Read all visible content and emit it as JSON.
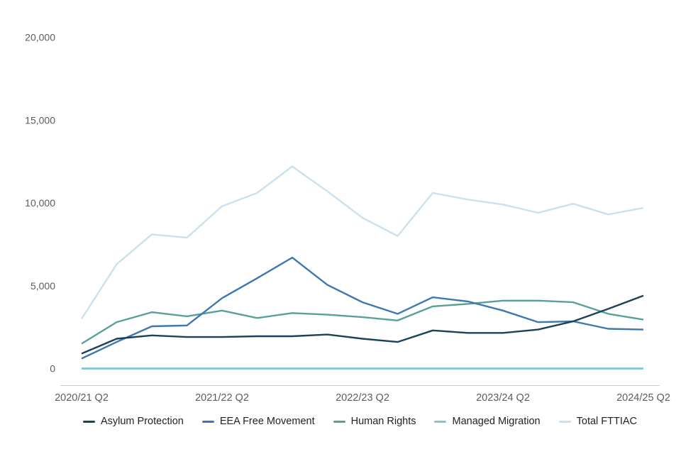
{
  "chart_data": {
    "type": "line",
    "x_tick_labels": [
      "2020/21 Q2",
      "2021/22 Q2",
      "2022/23 Q2",
      "2023/24 Q2",
      "2024/25 Q2"
    ],
    "x_tick_indices": [
      0,
      4,
      8,
      12,
      16
    ],
    "num_points": 17,
    "x_interval": "quarterly",
    "y_tick_labels": [
      "0",
      "5,000",
      "10,000",
      "15,000",
      "20,000"
    ],
    "y_tick_values": [
      0,
      5000,
      10000,
      15000,
      20000
    ],
    "ylim": [
      0,
      20000
    ],
    "grid": "off",
    "legend_position": "bottom",
    "axis_line_color": "#cccccc",
    "axis_text_color": "#5c5c5c",
    "legend_text_color": "#222222",
    "series": [
      {
        "name": "Asylum Protection",
        "color": "#1c4257",
        "values": [
          900,
          1800,
          2000,
          1900,
          1900,
          1950,
          1950,
          2050,
          1800,
          1600,
          2300,
          2150,
          2150,
          2350,
          2850,
          3600,
          4400
        ]
      },
      {
        "name": "EEA Free Movement",
        "color": "#3e78b1",
        "values": [
          600,
          1600,
          2550,
          2600,
          4250,
          5450,
          6700,
          5050,
          4000,
          3300,
          4300,
          4050,
          3500,
          2800,
          2850,
          2400,
          2350
        ]
      },
      {
        "name": "Human Rights",
        "color": "#57a198",
        "values": [
          1500,
          2800,
          3400,
          3150,
          3500,
          3050,
          3350,
          3250,
          3100,
          2900,
          3750,
          3900,
          4100,
          4100,
          4000,
          3300,
          2950
        ]
      },
      {
        "name": "Managed Migration",
        "color": "#7dc6dc",
        "values": [
          0,
          0,
          0,
          0,
          0,
          0,
          0,
          0,
          0,
          0,
          0,
          0,
          0,
          0,
          0,
          0,
          0
        ]
      },
      {
        "name": "Total FTTIAC",
        "color": "#cbe1ee",
        "values": [
          3000,
          6300,
          8100,
          7900,
          9800,
          10600,
          12200,
          10700,
          9100,
          8000,
          10600,
          10200,
          9900,
          9400,
          9950,
          9300,
          9700
        ]
      }
    ]
  }
}
